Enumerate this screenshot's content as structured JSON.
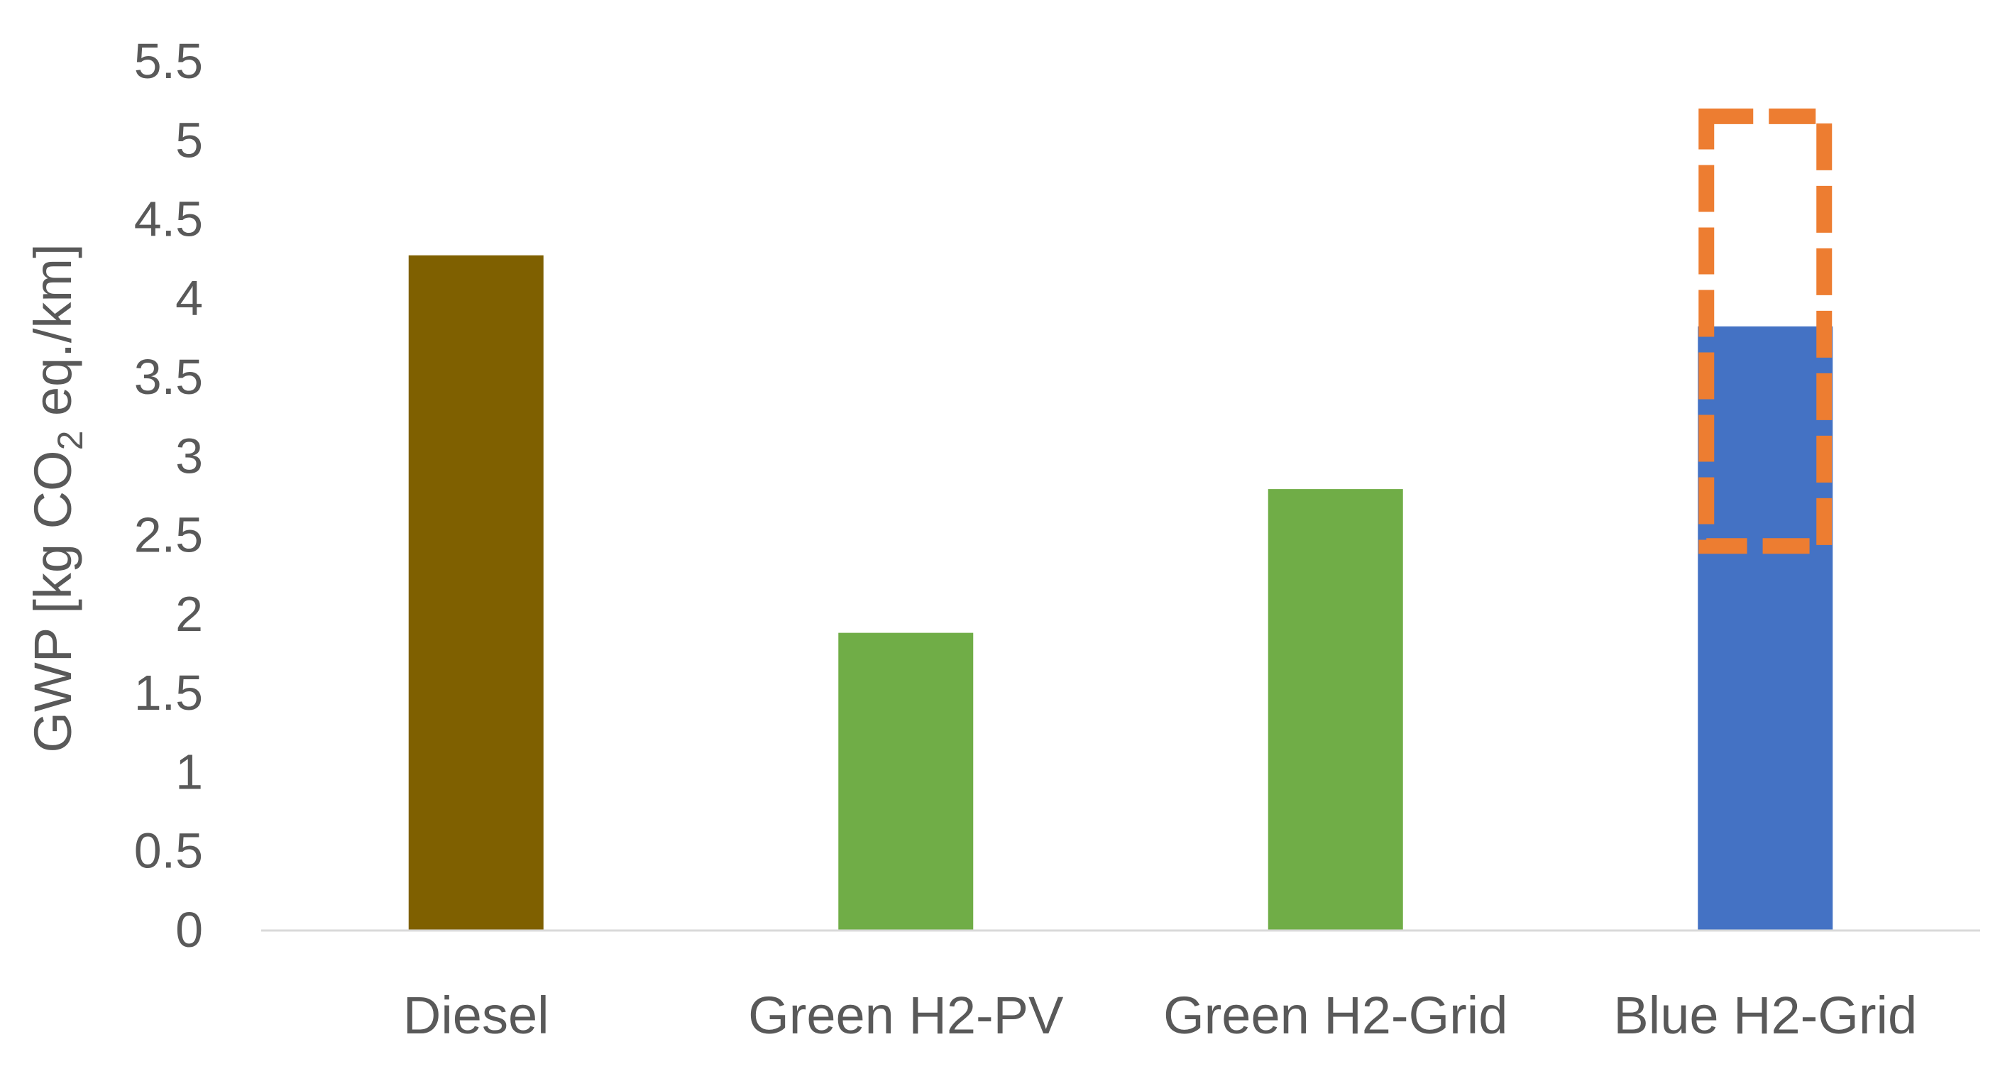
{
  "chart_data": {
    "type": "bar",
    "categories": [
      "Diesel",
      "Green H2-PV",
      "Green H2-Grid",
      "Blue H2-Grid"
    ],
    "values": [
      4.27,
      1.88,
      2.79,
      3.82
    ],
    "bar_colors": [
      "#7F6000",
      "#70AD47",
      "#70AD47",
      "#4472C4"
    ],
    "range_box": {
      "category": "Blue H2-Grid",
      "low": 2.43,
      "high": 5.15,
      "color": "#ED7D31",
      "style": "dashed"
    },
    "title": "",
    "xlabel": "",
    "ylabel": {
      "prefix": "GWP [kg CO",
      "subscript": "2",
      "suffix": " eq./km]"
    },
    "ylim": [
      0,
      5.5
    ],
    "yticks": [
      "0",
      "0.5",
      "1",
      "1.5",
      "2",
      "2.5",
      "3",
      "3.5",
      "4",
      "4.5",
      "5",
      "5.5"
    ],
    "grid": false,
    "legend": "none",
    "axis_color": "#D9D9D9",
    "text_color": "#595959"
  }
}
